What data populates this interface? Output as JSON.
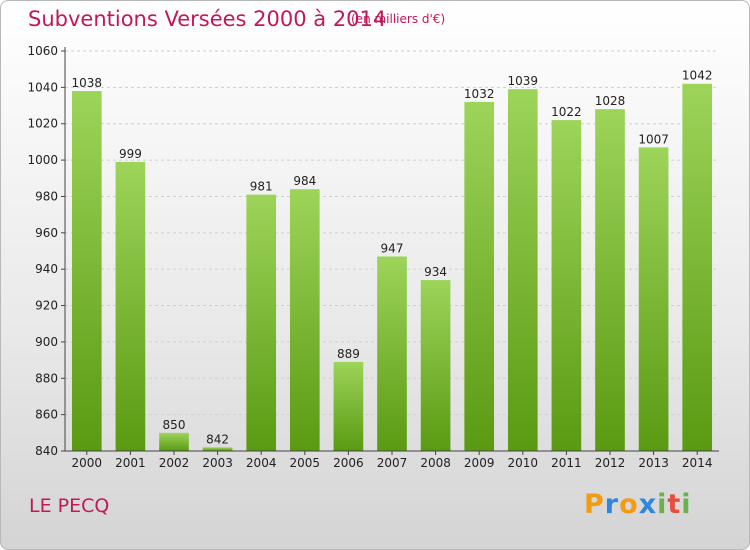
{
  "header": {
    "title": "Subventions Versées 2000 à 2014",
    "unit": "(en milliers d'€)"
  },
  "commune": "LE PECQ",
  "logo": {
    "text": "Proxiti",
    "letters": [
      "P",
      "r",
      "o",
      "x",
      "i",
      "t",
      "i"
    ],
    "colors": [
      "#f39c12",
      "#2e86de",
      "#f39c12",
      "#2e86de",
      "#6ab04c",
      "#e74c3c",
      "#6ab04c"
    ]
  },
  "chart_data": {
    "type": "bar",
    "categories": [
      "2000",
      "2001",
      "2002",
      "2003",
      "2004",
      "2005",
      "2006",
      "2007",
      "2008",
      "2009",
      "2010",
      "2011",
      "2012",
      "2013",
      "2014"
    ],
    "values": [
      1038,
      999,
      850,
      842,
      981,
      984,
      889,
      947,
      934,
      1032,
      1039,
      1022,
      1028,
      1007,
      1042
    ],
    "ylim": [
      840,
      1060
    ],
    "yticks": [
      840,
      860,
      880,
      900,
      920,
      940,
      960,
      980,
      1000,
      1020,
      1040,
      1060
    ],
    "grid": true,
    "bar_color_top": "#9dd45a",
    "bar_color_bottom": "#5a9a12"
  }
}
